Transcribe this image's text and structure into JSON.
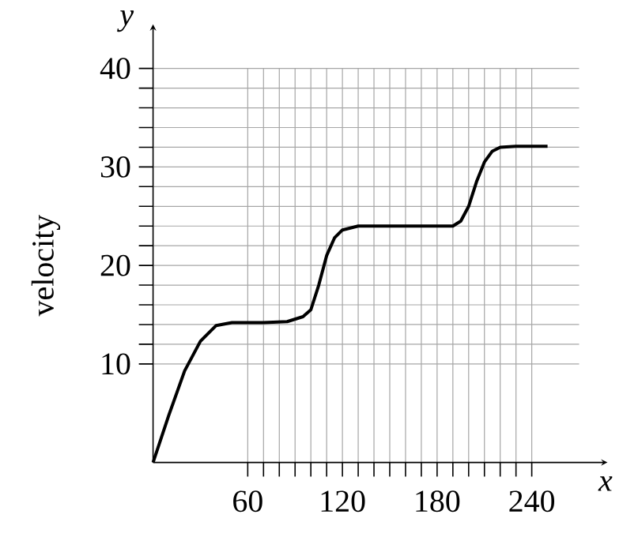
{
  "chart_data": {
    "type": "line",
    "xlabel": "x",
    "ylabel": "velocity",
    "annotations": [
      "y"
    ],
    "xlim": [
      0,
      270
    ],
    "ylim": [
      0,
      40
    ],
    "xticks": [
      60,
      120,
      180,
      240
    ],
    "yticks": [
      10,
      20,
      30,
      40
    ],
    "grid": true,
    "marker": "none",
    "line_style": "solid",
    "series": [
      {
        "color": "#000000",
        "x": [
          0,
          10,
          20,
          30,
          40,
          50,
          70,
          85,
          95,
          100,
          105,
          110,
          115,
          120,
          130,
          190,
          195,
          200,
          205,
          210,
          215,
          220,
          230,
          250
        ],
        "values": [
          0,
          4.8,
          9.3,
          12.3,
          13.9,
          14.2,
          14.2,
          14.3,
          14.8,
          15.5,
          18,
          21,
          22.8,
          23.6,
          24,
          24,
          24.5,
          26,
          28.5,
          30.5,
          31.6,
          32,
          32.1,
          32.1
        ]
      }
    ]
  }
}
